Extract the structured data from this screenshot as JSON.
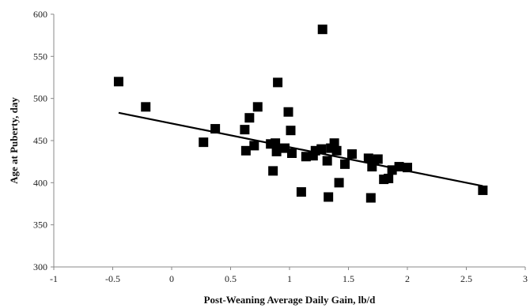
{
  "chart_data": {
    "type": "scatter",
    "xlabel": "Post-Weaning Average Daily Gain, lb/d",
    "ylabel": "Age at Puberty, day",
    "xlim": [
      -1,
      3
    ],
    "ylim": [
      300,
      600
    ],
    "x_ticks": [
      "-1",
      "-0.5",
      "0",
      "0.5",
      "1",
      "1.5",
      "2",
      "2.5",
      "3"
    ],
    "y_ticks": [
      "300",
      "350",
      "400",
      "450",
      "500",
      "550",
      "600"
    ],
    "grid": false,
    "legend": "none",
    "series": [
      {
        "marker": "square",
        "color": "#000000",
        "points": [
          {
            "x": -0.45,
            "y": 520
          },
          {
            "x": -0.22,
            "y": 490
          },
          {
            "x": 0.27,
            "y": 448
          },
          {
            "x": 0.37,
            "y": 464
          },
          {
            "x": 0.62,
            "y": 463
          },
          {
            "x": 0.63,
            "y": 438
          },
          {
            "x": 0.66,
            "y": 477
          },
          {
            "x": 0.7,
            "y": 444
          },
          {
            "x": 0.73,
            "y": 490
          },
          {
            "x": 0.84,
            "y": 446
          },
          {
            "x": 0.86,
            "y": 414
          },
          {
            "x": 0.88,
            "y": 447
          },
          {
            "x": 0.89,
            "y": 437
          },
          {
            "x": 0.9,
            "y": 519
          },
          {
            "x": 0.96,
            "y": 441
          },
          {
            "x": 0.99,
            "y": 484
          },
          {
            "x": 1.01,
            "y": 462
          },
          {
            "x": 1.02,
            "y": 435
          },
          {
            "x": 1.1,
            "y": 389
          },
          {
            "x": 1.14,
            "y": 431
          },
          {
            "x": 1.2,
            "y": 432
          },
          {
            "x": 1.22,
            "y": 438
          },
          {
            "x": 1.27,
            "y": 440
          },
          {
            "x": 1.28,
            "y": 582
          },
          {
            "x": 1.32,
            "y": 426
          },
          {
            "x": 1.33,
            "y": 383
          },
          {
            "x": 1.35,
            "y": 441
          },
          {
            "x": 1.38,
            "y": 447
          },
          {
            "x": 1.4,
            "y": 438
          },
          {
            "x": 1.42,
            "y": 400
          },
          {
            "x": 1.47,
            "y": 422
          },
          {
            "x": 1.53,
            "y": 434
          },
          {
            "x": 1.67,
            "y": 429
          },
          {
            "x": 1.69,
            "y": 382
          },
          {
            "x": 1.7,
            "y": 419
          },
          {
            "x": 1.72,
            "y": 426
          },
          {
            "x": 1.75,
            "y": 428
          },
          {
            "x": 1.8,
            "y": 404
          },
          {
            "x": 1.84,
            "y": 405
          },
          {
            "x": 1.87,
            "y": 415
          },
          {
            "x": 1.93,
            "y": 419
          },
          {
            "x": 2.0,
            "y": 418
          },
          {
            "x": 2.64,
            "y": 391
          }
        ]
      }
    ],
    "trendline": {
      "type": "linear",
      "from": {
        "x": -0.45,
        "y": 483
      },
      "to": {
        "x": 2.64,
        "y": 396
      }
    }
  }
}
